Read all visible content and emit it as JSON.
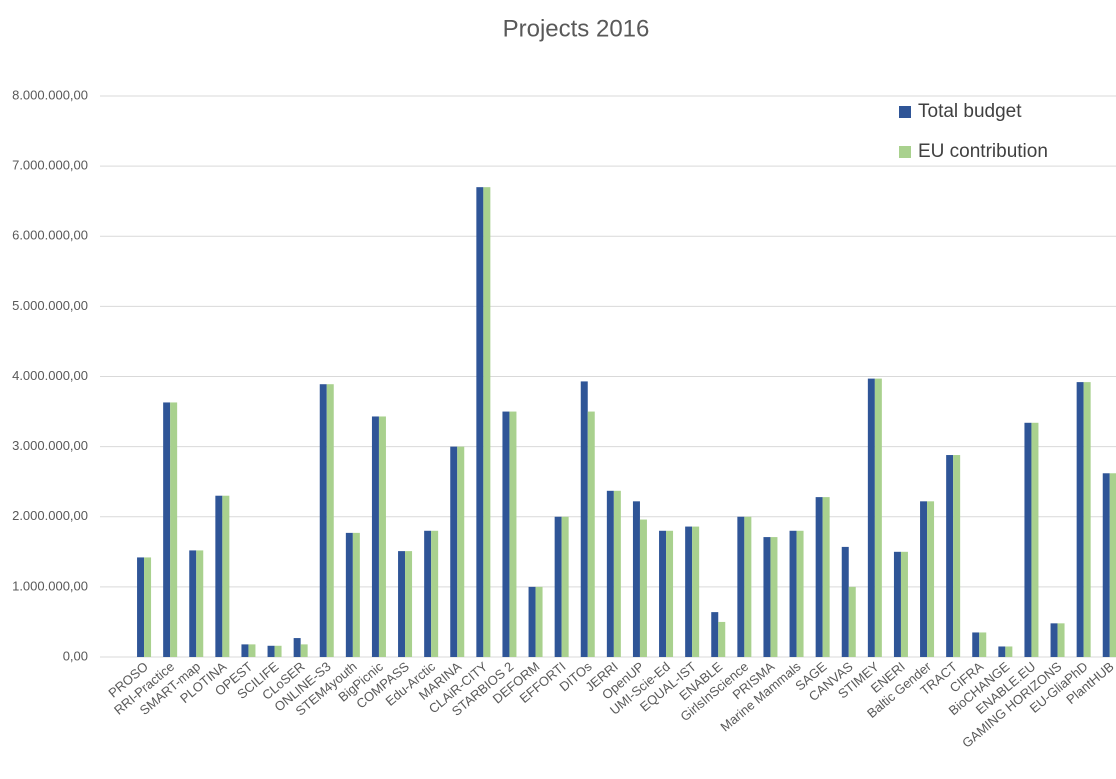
{
  "chart_data": {
    "type": "bar",
    "title": "Projects 2016",
    "categories": [
      "PROSO",
      "RRI-Practice",
      "SMART-map",
      "PLOTINA",
      "OPEST",
      "SCILIFE",
      "CLoSER",
      "ONLINE-S3",
      "STEM4youth",
      "BigPicnic",
      "COMPASS",
      "Edu-Arctic",
      "MARINA",
      "CLAiR-CITY",
      "STARBIOS 2",
      "DEFORM",
      "EFFORTI",
      "DITOs",
      "JERRI",
      "OpenUP",
      "UMI-Scie-Ed",
      "EQUAL-IST",
      "ENABLE",
      "GirlsInScience",
      "PRISMA",
      "Marine Mammals",
      "SAGE",
      "CANVAS",
      "STIMEY",
      "ENERI",
      "Baltic Gender",
      "TRACT",
      "CIFRA",
      "BioCHANGE",
      "ENABLE.EU",
      "GAMING HORIZONS",
      "EU-GliaPhD",
      "PlantHUB"
    ],
    "series": [
      {
        "name": "Total budget",
        "color": "#2f5597",
        "values": [
          1420000,
          3630000,
          1520000,
          2300000,
          180000,
          160000,
          270000,
          3890000,
          1770000,
          3430000,
          1510000,
          1800000,
          3000000,
          6700000,
          3500000,
          1000000,
          2000000,
          3930000,
          2370000,
          2220000,
          1800000,
          1860000,
          640000,
          2000000,
          1710000,
          1800000,
          2280000,
          1570000,
          3970000,
          1500000,
          2220000,
          2880000,
          350000,
          150000,
          3340000,
          480000,
          3920000,
          2620000
        ]
      },
      {
        "name": "EU contribution",
        "color": "#a9d18e",
        "values": [
          1420000,
          3630000,
          1520000,
          2300000,
          180000,
          160000,
          180000,
          3890000,
          1770000,
          3430000,
          1510000,
          1800000,
          3000000,
          6700000,
          3500000,
          1000000,
          2000000,
          3500000,
          2370000,
          1960000,
          1800000,
          1860000,
          500000,
          2000000,
          1710000,
          1800000,
          2280000,
          1000000,
          3970000,
          1500000,
          2220000,
          2880000,
          350000,
          150000,
          3340000,
          480000,
          3920000,
          2620000
        ]
      }
    ],
    "ylim": [
      0,
      8000000
    ],
    "yticks": [
      {
        "value": 0,
        "label": "0,00"
      },
      {
        "value": 1000000,
        "label": "1.000.000,00"
      },
      {
        "value": 2000000,
        "label": "2.000.000,00"
      },
      {
        "value": 3000000,
        "label": "3.000.000,00"
      },
      {
        "value": 4000000,
        "label": "4.000.000,00"
      },
      {
        "value": 5000000,
        "label": "5.000.000,00"
      },
      {
        "value": 6000000,
        "label": "6.000.000,00"
      },
      {
        "value": 7000000,
        "label": "7.000.000,00"
      },
      {
        "value": 8000000,
        "label": "8.000.000,00"
      }
    ],
    "grid": true,
    "legend": "top-right"
  }
}
